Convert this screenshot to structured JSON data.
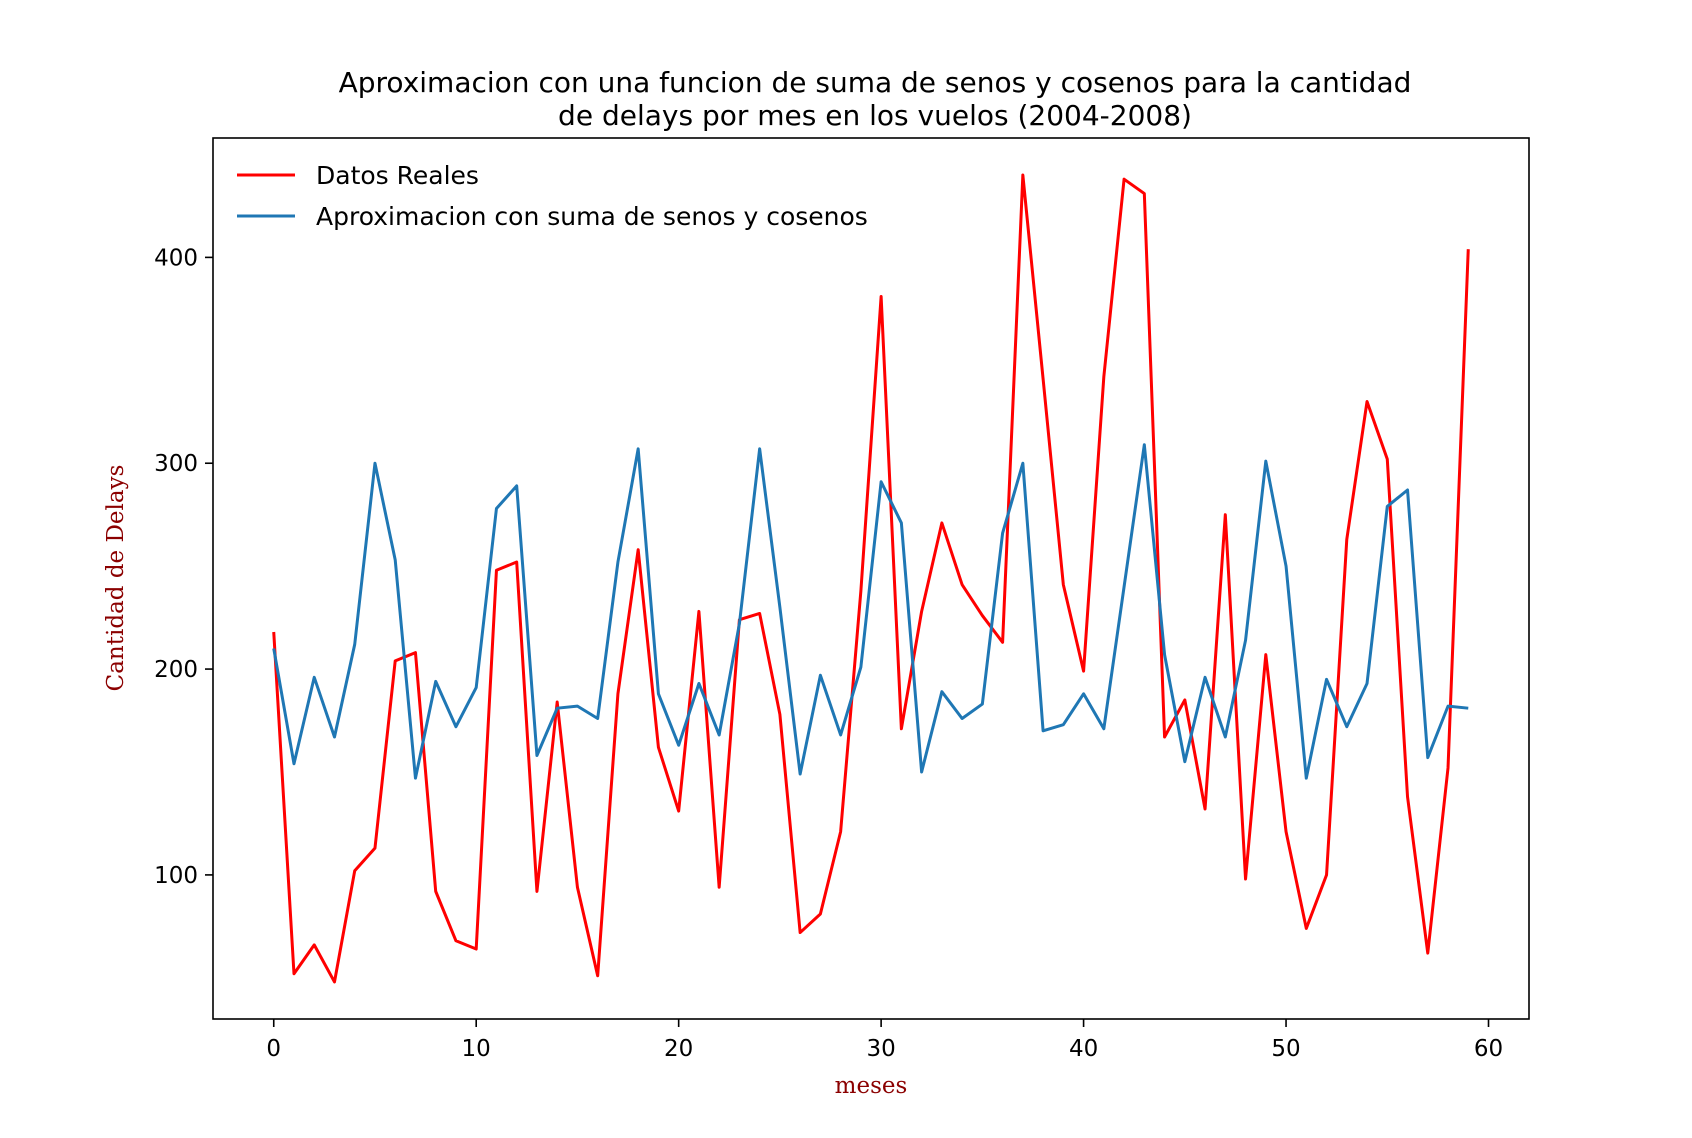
{
  "chart_data": {
    "type": "line",
    "title_lines": [
      "Aproximacion con una funcion de suma de senos y cosenos para la cantidad",
      "de delays por mes en los vuelos (2004-2008)"
    ],
    "xlabel": "meses",
    "ylabel": "Cantidad de Delays",
    "label_color": "#8b0000",
    "xlim": [
      -3,
      62
    ],
    "ylim": [
      30,
      458
    ],
    "xticks": [
      0,
      10,
      20,
      30,
      40,
      50,
      60
    ],
    "yticks": [
      100,
      200,
      300,
      400
    ],
    "legend_position": "upper-left",
    "grid": false,
    "x": [
      0,
      1,
      2,
      3,
      4,
      5,
      6,
      7,
      8,
      9,
      10,
      11,
      12,
      13,
      14,
      15,
      16,
      17,
      18,
      19,
      20,
      21,
      22,
      23,
      24,
      25,
      26,
      27,
      28,
      29,
      30,
      31,
      32,
      33,
      34,
      35,
      36,
      37,
      38,
      39,
      40,
      41,
      42,
      43,
      44,
      45,
      46,
      47,
      48,
      49,
      50,
      51,
      52,
      53,
      54,
      55,
      56,
      57,
      58,
      59
    ],
    "series": [
      {
        "name": "Datos Reales",
        "color": "#ff0000",
        "values": [
          218,
          52,
          66,
          48,
          102,
          113,
          204,
          208,
          92,
          68,
          64,
          248,
          252,
          92,
          184,
          94,
          51,
          188,
          258,
          162,
          131,
          228,
          94,
          224,
          227,
          178,
          72,
          81,
          121,
          238,
          381,
          171,
          228,
          271,
          241,
          226,
          213,
          440,
          341,
          241,
          199,
          342,
          438,
          431,
          167,
          185,
          132,
          275,
          98,
          207,
          121,
          74,
          100,
          263,
          330,
          302,
          138,
          62,
          152,
          404
        ]
      },
      {
        "name": "Aproximacion con suma de senos y cosenos",
        "color": "#1f77b4",
        "values": [
          210,
          154,
          196,
          167,
          212,
          300,
          253,
          147,
          194,
          172,
          191,
          278,
          289,
          158,
          181,
          182,
          176,
          252,
          307,
          188,
          163,
          193,
          168,
          222,
          307,
          230,
          149,
          197,
          168,
          201,
          291,
          271,
          150,
          189,
          176,
          183,
          266,
          300,
          170,
          173,
          188,
          171,
          240,
          309,
          207,
          155,
          196,
          167,
          214,
          301,
          250,
          147,
          195,
          172,
          193,
          279,
          287,
          157,
          182,
          181
        ]
      }
    ]
  }
}
